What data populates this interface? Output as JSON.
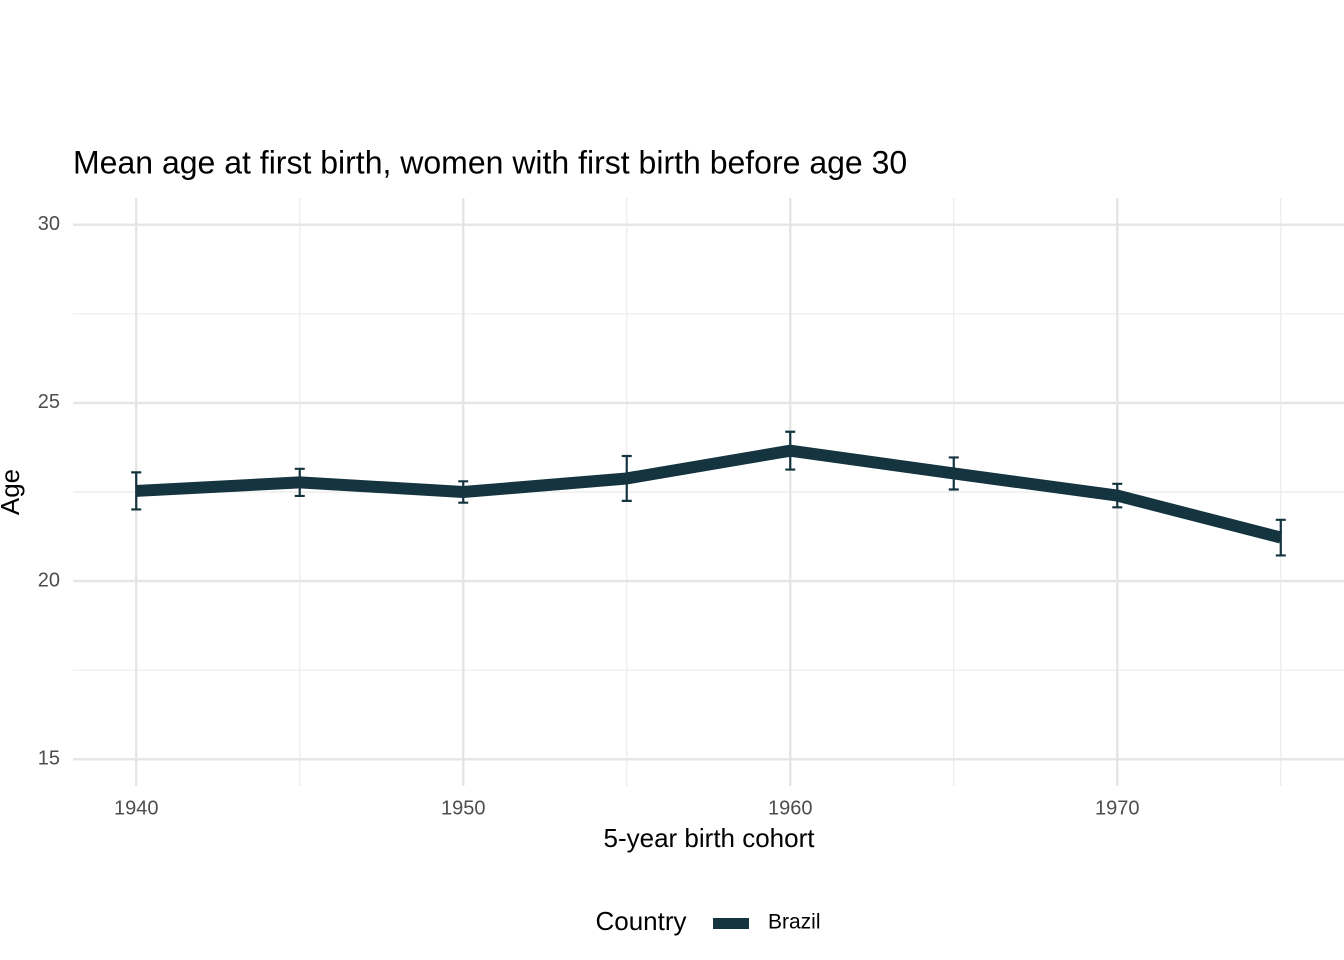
{
  "chart_data": {
    "type": "line",
    "title": "Mean age at first birth, women with first birth before age 30",
    "x_label": "5-year birth cohort",
    "y_label": "Age",
    "x": [
      1940,
      1945,
      1950,
      1955,
      1960,
      1965,
      1970,
      1975
    ],
    "series": [
      {
        "name": "Brazil",
        "color": "#14343f",
        "values": [
          22.53,
          22.77,
          22.5,
          22.88,
          23.66,
          23.02,
          22.4,
          21.22
        ],
        "errors": [
          0.52,
          0.38,
          0.3,
          0.63,
          0.53,
          0.45,
          0.33,
          0.5
        ]
      }
    ],
    "xlim": [
      1938.25,
      1976.75
    ],
    "xticks": [
      1940,
      1950,
      1960,
      1970
    ],
    "ylim": [
      14.25,
      30.75
    ],
    "yticks": [
      15,
      20,
      25,
      30
    ],
    "grid": true,
    "legend_title": "Country",
    "legend_position": "bottom"
  }
}
